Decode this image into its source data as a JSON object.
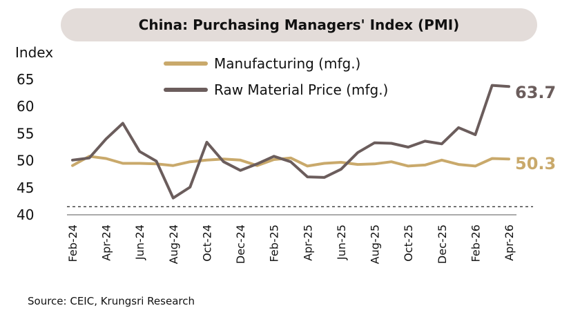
{
  "title": "China: Purchasing Managers' Index (PMI)",
  "source": "Source: CEIC, Krungsri Research",
  "chart_data": {
    "type": "line",
    "ylabel": "Index",
    "ylim": [
      40,
      65
    ],
    "yticks": [
      40,
      45,
      50,
      55,
      60,
      65
    ],
    "reference_line": {
      "y": 41.5,
      "style": "dashed"
    },
    "legend_position": "top",
    "categories": [
      "Feb-24",
      "Mar-24",
      "Apr-24",
      "May-24",
      "Jun-24",
      "Jul-24",
      "Aug-24",
      "Sep-24",
      "Oct-24",
      "Nov-24",
      "Dec-24",
      "Jan-25",
      "Feb-25",
      "Mar-25",
      "Apr-25",
      "May-25",
      "Jun-25",
      "Jul-25",
      "Aug-25",
      "Sep-25",
      "Oct-25",
      "Nov-25",
      "Dec-25",
      "Jan-26",
      "Feb-26",
      "Mar-26",
      "Apr-26"
    ],
    "tick_labels": [
      "Feb-24",
      "Apr-24",
      "Jun-24",
      "Aug-24",
      "Oct-24",
      "Dec-24",
      "Feb-25",
      "Apr-25",
      "Jun-25",
      "Aug-25",
      "Oct-25",
      "Dec-25",
      "Feb-26",
      "Apr-26"
    ],
    "series": [
      {
        "name": "Manufacturing (mfg.)",
        "color": "#c9a96b",
        "end_label": "50.3",
        "values": [
          49.1,
          50.8,
          50.4,
          49.5,
          49.5,
          49.4,
          49.1,
          49.8,
          50.1,
          50.3,
          50.1,
          49.1,
          50.2,
          50.5,
          49.0,
          49.5,
          49.7,
          49.3,
          49.4,
          49.8,
          49.0,
          49.2,
          50.1,
          49.3,
          49.0,
          50.4,
          50.3
        ]
      },
      {
        "name": "Raw Material Price (mfg.)",
        "color": "#6b5d5c",
        "end_label": "63.7",
        "values": [
          50.1,
          50.5,
          54.0,
          56.9,
          51.7,
          49.9,
          43.1,
          45.1,
          53.4,
          49.8,
          48.2,
          49.4,
          50.8,
          49.8,
          47.0,
          46.9,
          48.4,
          51.5,
          53.3,
          53.2,
          52.5,
          53.6,
          53.1,
          56.1,
          54.8,
          63.9,
          63.7
        ]
      }
    ]
  }
}
